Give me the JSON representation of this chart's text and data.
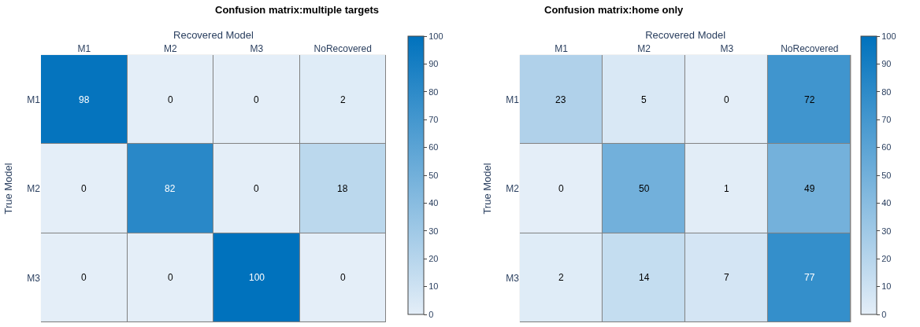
{
  "chart_data": [
    {
      "type": "heatmap",
      "title": "Confusion matrix:multiple targets",
      "xlabel": "Recovered Model",
      "ylabel": "True Model",
      "categories": [
        "M1",
        "M2",
        "M3",
        "NoRecovered"
      ],
      "y_categories": [
        "M1",
        "M2",
        "M3"
      ],
      "cells": [
        [
          98,
          0,
          0,
          2
        ],
        [
          0,
          82,
          0,
          18
        ],
        [
          0,
          0,
          100,
          0
        ]
      ],
      "clim": [
        0,
        100
      ],
      "cticks": [
        0,
        10,
        20,
        30,
        40,
        50,
        60,
        70,
        80,
        90,
        100
      ],
      "data_labels": true
    },
    {
      "type": "heatmap",
      "title": "Confusion matrix:home only",
      "xlabel": "Recovered Model",
      "ylabel": "True Model",
      "categories": [
        "M1",
        "M2",
        "M3",
        "NoRecovered"
      ],
      "y_categories": [
        "M1",
        "M2",
        "M3"
      ],
      "cells": [
        [
          23,
          5,
          0,
          72
        ],
        [
          0,
          50,
          1,
          49
        ],
        [
          2,
          14,
          7,
          77
        ]
      ],
      "clim": [
        0,
        100
      ],
      "cticks": [
        0,
        10,
        20,
        30,
        40,
        50,
        60,
        70,
        80,
        90,
        100
      ],
      "data_labels": true
    }
  ]
}
